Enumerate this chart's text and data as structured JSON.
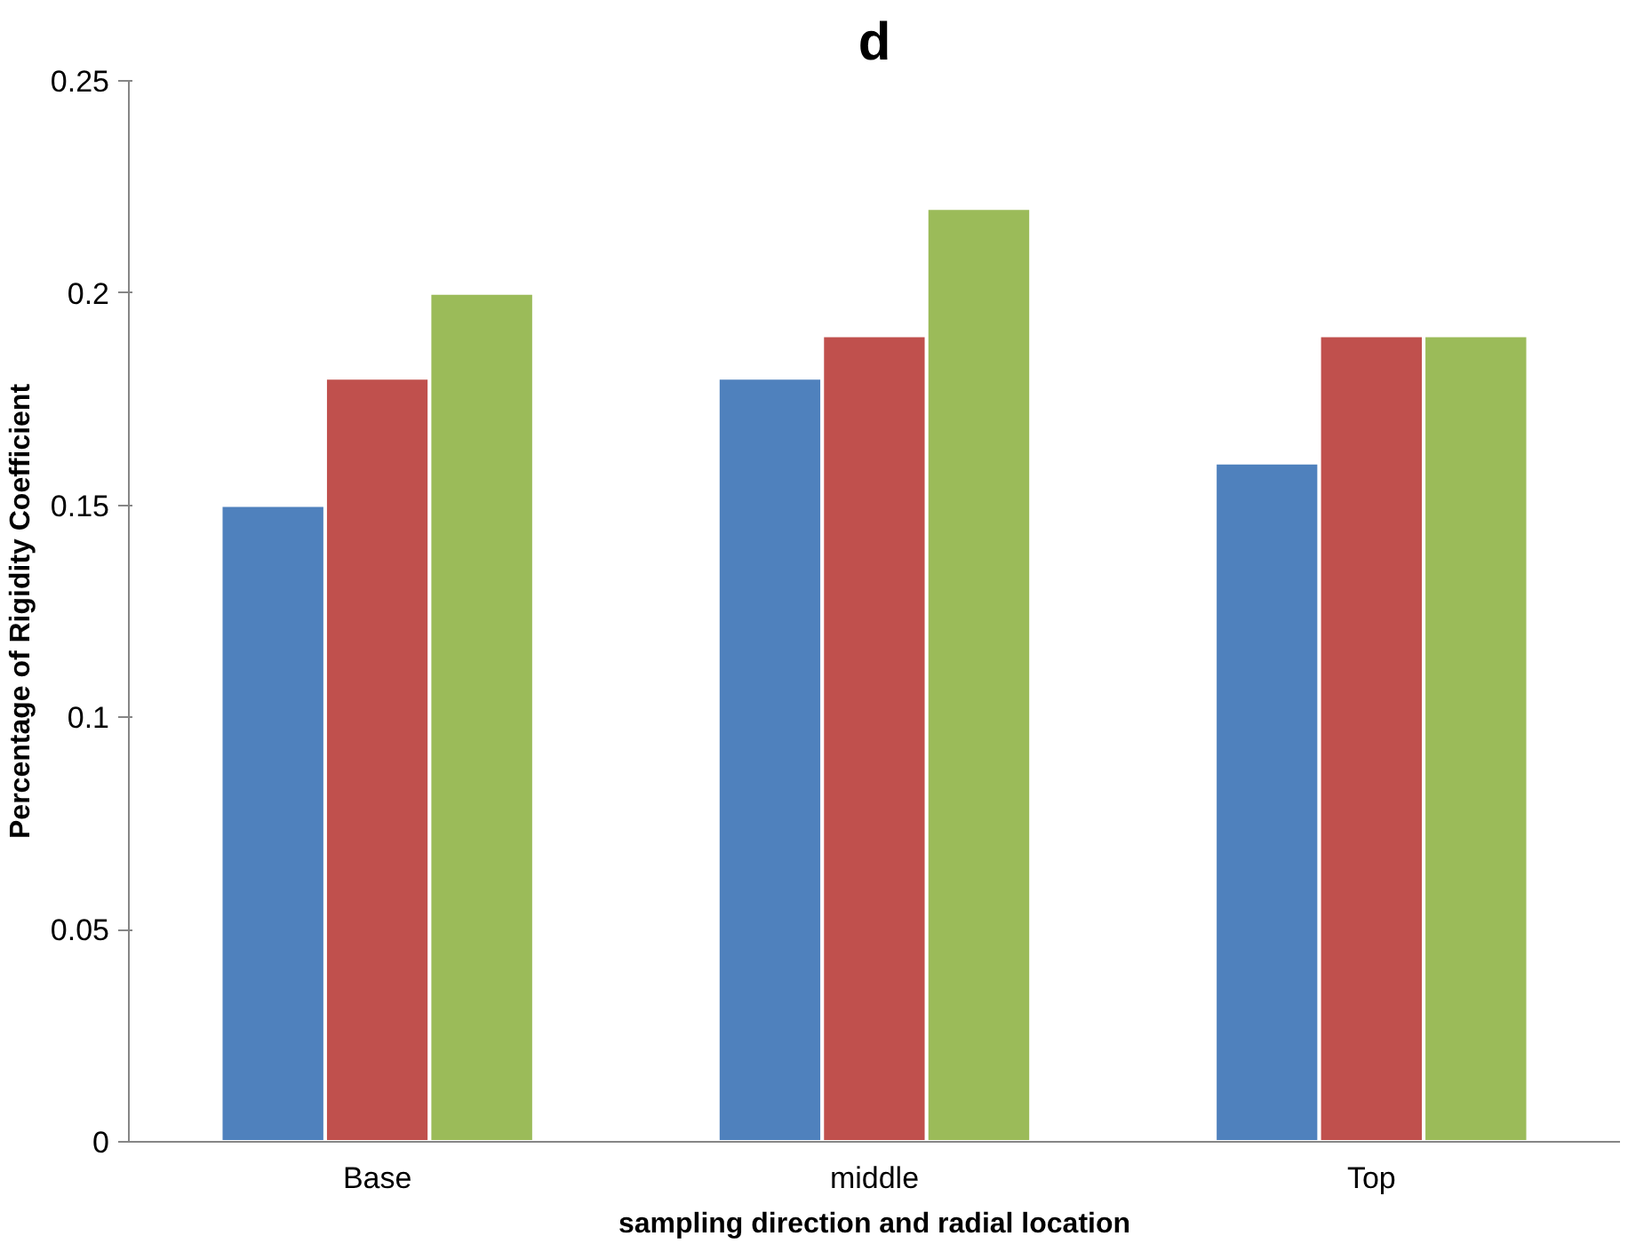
{
  "chart_data": {
    "type": "bar",
    "title": "d",
    "xlabel": "sampling direction and radial location",
    "ylabel": "Percentage of Rigidity Coefficient",
    "categories": [
      "Base",
      "middle",
      "Top"
    ],
    "series": [
      {
        "color": "#4f81bd",
        "values": [
          0.15,
          0.18,
          0.16
        ]
      },
      {
        "color": "#c0504d",
        "values": [
          0.18,
          0.19,
          0.19
        ]
      },
      {
        "color": "#9bbb59",
        "values": [
          0.2,
          0.22,
          0.19
        ]
      }
    ],
    "ylim": [
      0,
      0.25
    ],
    "yticks": [
      0,
      0.05,
      0.1,
      0.15,
      0.2,
      0.25
    ],
    "grid": false
  }
}
